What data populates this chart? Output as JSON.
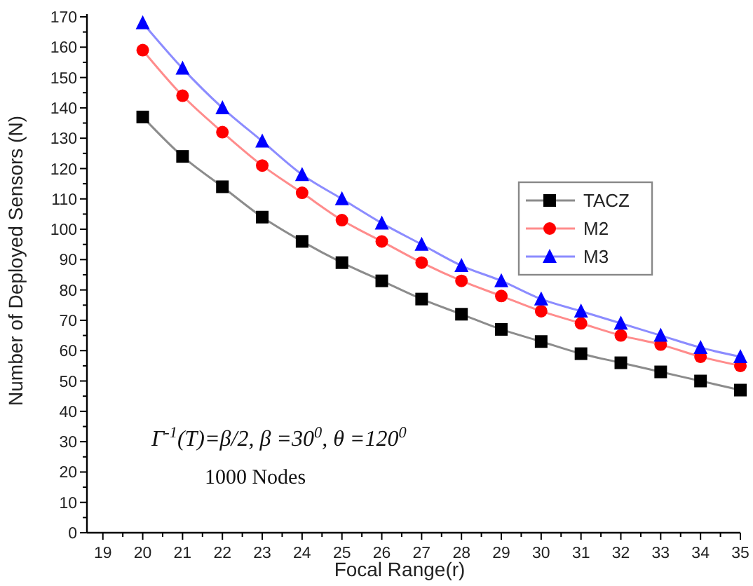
{
  "chart_data": {
    "type": "line",
    "xlabel": "Focal Range(r)",
    "ylabel": "Number of Deployed Sensors (N)",
    "x": [
      20,
      21,
      22,
      23,
      24,
      25,
      26,
      27,
      28,
      29,
      30,
      31,
      32,
      33,
      34,
      35
    ],
    "series": [
      {
        "name": "TACZ",
        "color": "#000000",
        "marker": "square",
        "values": [
          137,
          124,
          114,
          104,
          96,
          89,
          83,
          77,
          72,
          67,
          63,
          59,
          56,
          53,
          50,
          47
        ]
      },
      {
        "name": "M2",
        "color": "#ff0000",
        "marker": "circle",
        "values": [
          159,
          144,
          132,
          121,
          112,
          103,
          96,
          89,
          83,
          78,
          73,
          69,
          65,
          62,
          58,
          55
        ]
      },
      {
        "name": "M3",
        "color": "#0000ff",
        "marker": "triangle",
        "values": [
          168,
          153,
          140,
          129,
          118,
          110,
          102,
          95,
          88,
          83,
          77,
          73,
          69,
          65,
          61,
          58
        ]
      }
    ],
    "xlim": [
      18.6,
      35
    ],
    "xticks": [
      19,
      20,
      21,
      22,
      23,
      24,
      25,
      26,
      27,
      28,
      29,
      30,
      31,
      32,
      33,
      34,
      35
    ],
    "ylim": [
      0,
      170
    ],
    "yticks": [
      0,
      10,
      20,
      30,
      40,
      50,
      60,
      70,
      80,
      90,
      100,
      110,
      120,
      130,
      140,
      150,
      160,
      170
    ],
    "grid": false,
    "legend": "right",
    "line_style": "solid",
    "annotations": [
      "Γ$^{-1}$(T)=β/2, β =30$^{0}$, θ =120$^{0}$",
      "1000 Nodes"
    ]
  }
}
